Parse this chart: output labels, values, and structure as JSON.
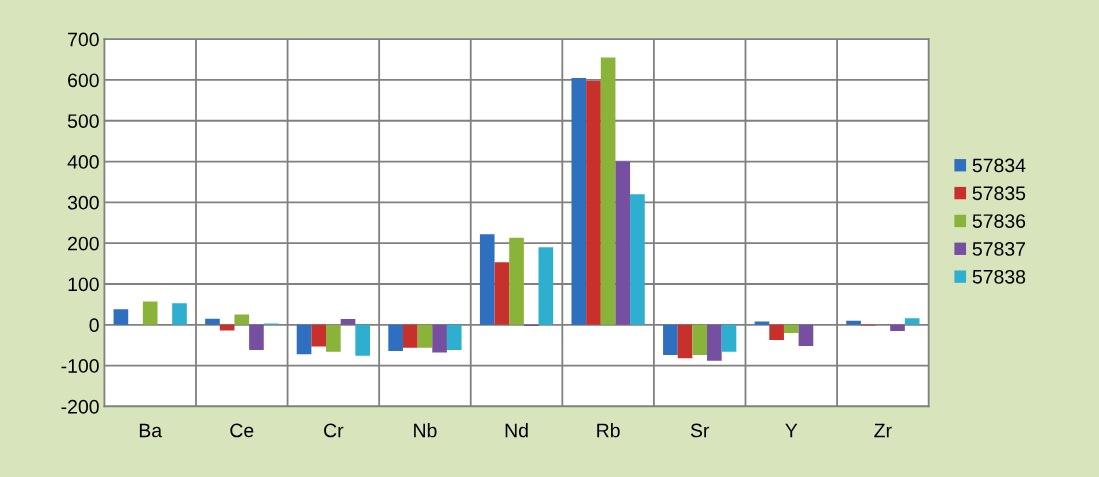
{
  "chart_data": {
    "type": "bar",
    "categories": [
      "Ba",
      "Ce",
      "Cr",
      "Nb",
      "Nd",
      "Rb",
      "Sr",
      "Y",
      "Zr"
    ],
    "series": [
      {
        "name": "57834",
        "color": "#2e6fbf",
        "values": [
          38,
          15,
          -72,
          -64,
          222,
          605,
          -74,
          8,
          10
        ]
      },
      {
        "name": "57835",
        "color": "#c8302c",
        "values": [
          0,
          -14,
          -53,
          -56,
          153,
          598,
          -82,
          -37,
          -2
        ]
      },
      {
        "name": "57836",
        "color": "#8ab33a",
        "values": [
          57,
          25,
          -66,
          -56,
          213,
          655,
          -74,
          -20,
          0
        ]
      },
      {
        "name": "57837",
        "color": "#7550a0",
        "values": [
          0,
          -62,
          14,
          -68,
          -3,
          400,
          -88,
          -52,
          -15
        ]
      },
      {
        "name": "57838",
        "color": "#2eafcf",
        "values": [
          53,
          3,
          -76,
          -62,
          190,
          320,
          -66,
          0,
          16
        ]
      }
    ],
    "ylim": [
      -200,
      700
    ],
    "yticks": [
      -200,
      -100,
      0,
      100,
      200,
      300,
      400,
      500,
      600,
      700
    ],
    "grid": true,
    "legend": "right"
  }
}
